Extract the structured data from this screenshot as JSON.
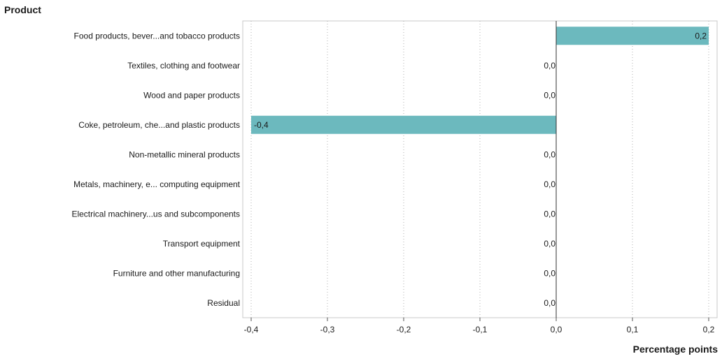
{
  "chart_data": {
    "type": "bar",
    "orientation": "horizontal",
    "ylabel": "Product",
    "xlabel": "Percentage points",
    "categories": [
      "Food products, bever...and tobacco products",
      "Textiles, clothing and footwear",
      "Wood and paper products",
      "Coke, petroleum, che...and plastic products",
      "Non-metallic mineral products",
      "Metals, machinery, e... computing equipment",
      "Electrical machinery...us and subcomponents",
      "Transport equipment",
      "Furniture and other manufacturing",
      "Residual"
    ],
    "values": [
      0.2,
      0.0,
      0.0,
      -0.4,
      0.0,
      0.0,
      0.0,
      0.0,
      0.0,
      0.0
    ],
    "data_labels": [
      "0,2",
      "0,0",
      "0,0",
      "-0,4",
      "0,0",
      "0,0",
      "0,0",
      "0,0",
      "0,0",
      "0,0"
    ],
    "xlim": [
      -0.4,
      0.2
    ],
    "ticks": [
      -0.4,
      -0.3,
      -0.2,
      -0.1,
      0.0,
      0.1,
      0.2
    ],
    "tick_labels": [
      "-0,4",
      "-0,3",
      "-0,2",
      "-0,1",
      "0,0",
      "0,1",
      "0,2"
    ],
    "grid": "vertical dotted",
    "bar_color": "#6cb9be",
    "legend": "none"
  }
}
